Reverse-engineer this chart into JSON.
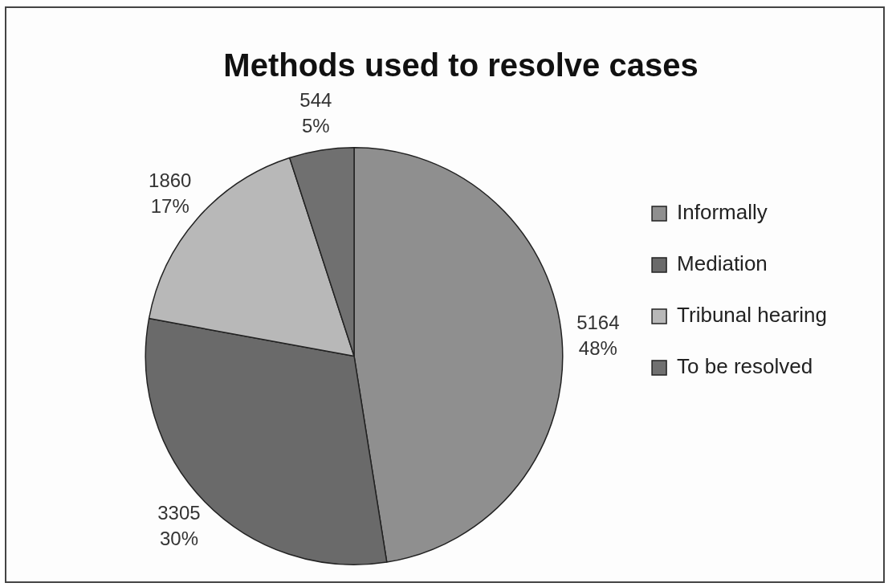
{
  "chart_data": {
    "type": "pie",
    "title": "Methods used to resolve cases",
    "categories": [
      "Informally",
      "Mediation",
      "Tribunal hearing",
      "To be resolved"
    ],
    "values": [
      5164,
      3305,
      1860,
      544
    ],
    "colors": [
      "#8f8f8f",
      "#6a6a6a",
      "#b8b8b8",
      "#707070"
    ],
    "value_labels": [
      "5164\n48%",
      "3305\n30%",
      "1860\n17%",
      "544\n5%"
    ],
    "legend": "right"
  }
}
